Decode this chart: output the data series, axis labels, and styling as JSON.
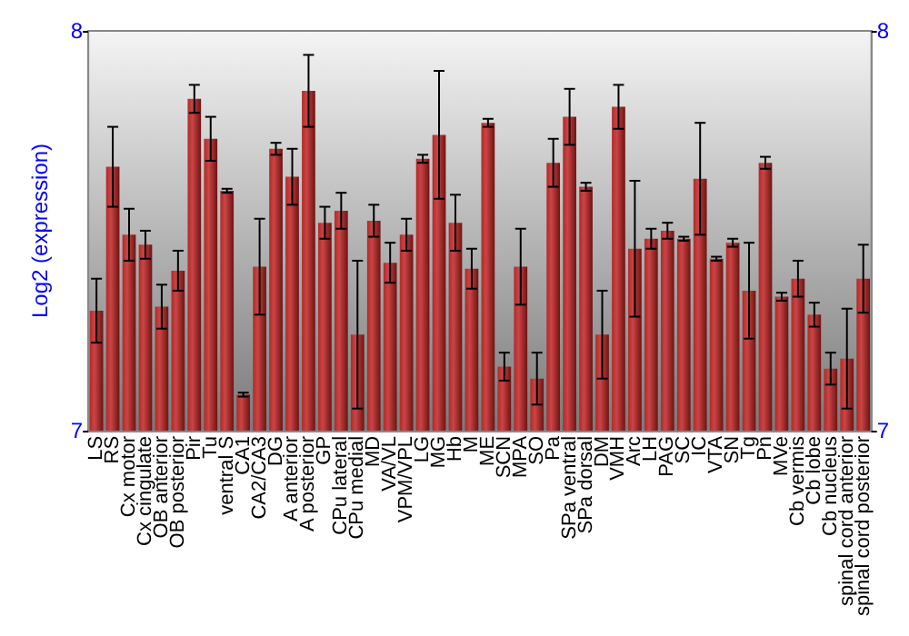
{
  "chart_data": {
    "type": "bar",
    "ylabel": "Log2 (expression)",
    "categories": [
      "LS",
      "RS",
      "Cx motor",
      "Cx cingulate",
      "OB anterior",
      "OB posterior",
      "Pir",
      "Tu",
      "ventral S",
      "CA1",
      "CA2/CA3",
      "DG",
      "A anterior",
      "A posterior",
      "GP",
      "CPu lateral",
      "CPu medial",
      "MD",
      "VA/VL",
      "VPM/VPL",
      "LG",
      "MG",
      "Hb",
      "M",
      "ME",
      "SCN",
      "MPA",
      "SO",
      "Pa",
      "SPa ventral",
      "SPa dorsal",
      "DM",
      "VMH",
      "Arc",
      "LH",
      "PAG",
      "SC",
      "IC",
      "VTA",
      "SN",
      "Tg",
      "Pn",
      "MVe",
      "Cb vermis",
      "Cb lobe",
      "Cb nucleus",
      "spinal cord anterior",
      "spinal cord posterior"
    ],
    "values": [
      7.3,
      7.66,
      7.49,
      7.465,
      7.31,
      7.4,
      7.83,
      7.73,
      7.6,
      7.09,
      7.41,
      7.705,
      7.635,
      7.85,
      7.52,
      7.55,
      7.24,
      7.525,
      7.42,
      7.49,
      7.68,
      7.74,
      7.52,
      7.405,
      7.77,
      7.16,
      7.41,
      7.13,
      7.67,
      7.785,
      7.61,
      7.24,
      7.81,
      7.455,
      7.48,
      7.5,
      7.48,
      7.63,
      7.43,
      7.47,
      7.35,
      7.67,
      7.335,
      7.38,
      7.29,
      7.155,
      7.18,
      7.38
    ],
    "errors": [
      0.08,
      0.1,
      0.065,
      0.035,
      0.055,
      0.05,
      0.035,
      0.055,
      0.005,
      0.005,
      0.12,
      0.015,
      0.07,
      0.09,
      0.04,
      0.045,
      0.185,
      0.04,
      0.05,
      0.04,
      0.01,
      0.16,
      0.07,
      0.05,
      0.01,
      0.035,
      0.095,
      0.065,
      0.06,
      0.07,
      0.01,
      0.11,
      0.055,
      0.17,
      0.025,
      0.02,
      0.005,
      0.14,
      0.005,
      0.01,
      0.12,
      0.015,
      0.01,
      0.045,
      0.03,
      0.04,
      0.125,
      0.085
    ],
    "color": "#b02a2a",
    "ylim": [
      7,
      8
    ],
    "yticks": [
      7,
      8
    ],
    "y2lim": [
      7,
      8
    ],
    "y2ticks": [
      7,
      8
    ],
    "grid": false
  }
}
